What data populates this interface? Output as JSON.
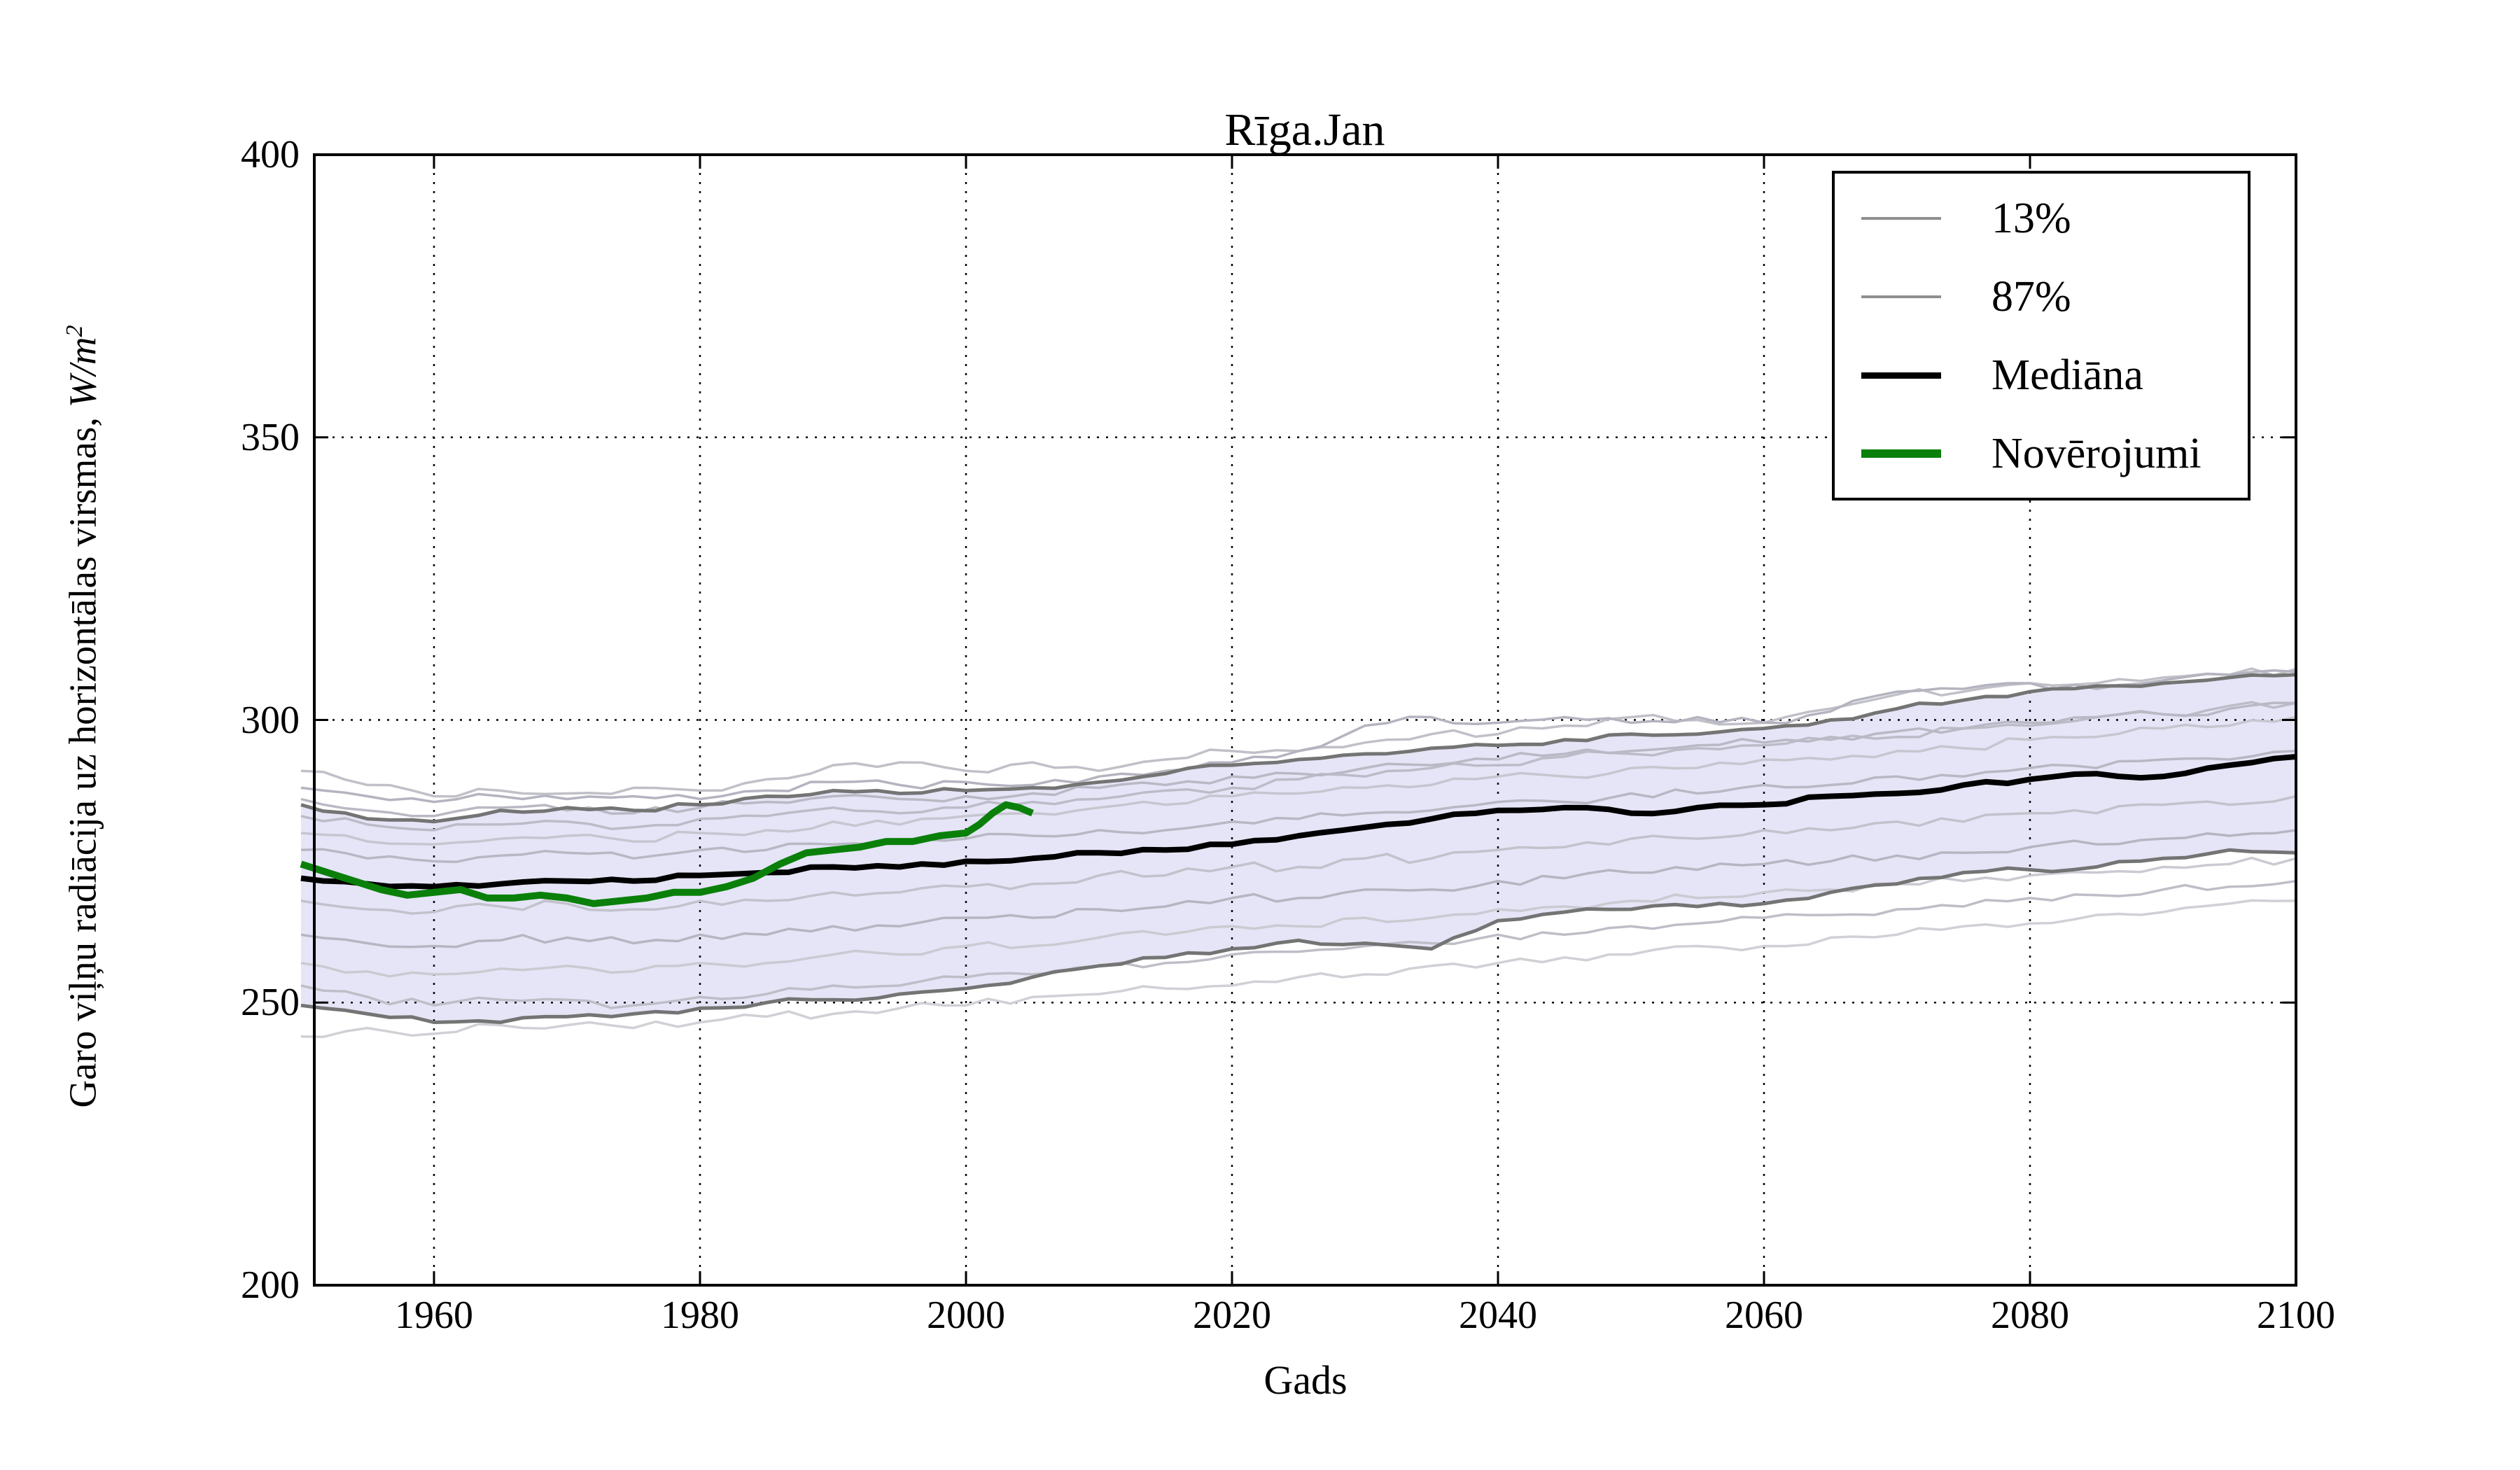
{
  "chart_data": {
    "type": "line",
    "title": "Rīga.Jan",
    "xlabel": "Gads",
    "ylabel": "Garo viļņu radiācija uz horizontālas virsmas, W/m²",
    "ylabel_prefix": "Garo viļņu radiācija uz horizontālas virsmas, ",
    "ylabel_unit_base": "W/m",
    "ylabel_unit_exp": "2",
    "xlim": [
      1951,
      2100
    ],
    "ylim": [
      200,
      400
    ],
    "xticks": [
      1960,
      1980,
      2000,
      2020,
      2040,
      2060,
      2080,
      2100
    ],
    "yticks": [
      200,
      250,
      300,
      350,
      400
    ],
    "grid": true,
    "grid_style": "dotted",
    "background": "#ffffff",
    "band_fill": "#e5e5f7",
    "legend": {
      "position": "upper-right",
      "entries": [
        {
          "label": "13%",
          "color": "#8f8f8f",
          "sample_height": 4
        },
        {
          "label": "87%",
          "color": "#8f8f8f",
          "sample_height": 4
        },
        {
          "label": "Mediāna",
          "color": "#000000",
          "sample_height": 9
        },
        {
          "label": "Novērojumi",
          "color": "#0a800a",
          "sample_height": 12
        }
      ]
    },
    "years": [
      1950,
      1955,
      1960,
      1965,
      1970,
      1975,
      1980,
      1985,
      1990,
      1995,
      2000,
      2005,
      2010,
      2015,
      2020,
      2025,
      2030,
      2035,
      2040,
      2045,
      2050,
      2055,
      2060,
      2065,
      2070,
      2075,
      2080,
      2085,
      2090,
      2095,
      2100
    ],
    "series": [
      {
        "name": "13%",
        "role": "band-lower",
        "color": "#747474",
        "width": 5,
        "values": [
          249.5,
          248,
          246.5,
          246.5,
          247.5,
          248,
          249,
          250,
          250.5,
          251.5,
          252.5,
          254.5,
          256.5,
          258,
          259.5,
          261,
          260.5,
          259.5,
          264.5,
          266,
          266.5,
          267,
          267.5,
          269.5,
          271,
          273,
          273.5,
          274,
          275.5,
          277,
          276.5
        ]
      },
      {
        "name": "87%",
        "role": "band-upper",
        "color": "#747474",
        "width": 5,
        "values": [
          285,
          282.5,
          282,
          284,
          284.5,
          284,
          285,
          286.5,
          287.5,
          287,
          287.5,
          288,
          289,
          290.5,
          292,
          293,
          294,
          295,
          295.5,
          296.5,
          297.5,
          297.5,
          298.5,
          300,
          302,
          303.5,
          305,
          306,
          306.5,
          307.5,
          308
        ]
      },
      {
        "name": "Mediāna",
        "role": "median",
        "color": "#000000",
        "width": 8,
        "values": [
          272,
          271,
          270.5,
          271,
          271.5,
          271.5,
          272.5,
          273,
          274,
          274,
          275,
          275.5,
          276.5,
          277,
          278,
          279.5,
          281,
          282.5,
          284,
          284.5,
          283.5,
          284.5,
          285,
          286.5,
          287,
          288.5,
          289.5,
          290.5,
          290,
          292,
          293.5
        ]
      },
      {
        "name": "Novērojumi",
        "role": "observations",
        "color": "#0a800a",
        "width": 10,
        "x": [
          1950,
          1952,
          1954,
          1956,
          1958,
          1960,
          1962,
          1964,
          1966,
          1968,
          1970,
          1972,
          1974,
          1976,
          1978,
          1980,
          1982,
          1984,
          1986,
          1988,
          1990,
          1992,
          1994,
          1996,
          1998,
          2000,
          2001,
          2002,
          2003,
          2004,
          2005
        ],
        "values": [
          274.5,
          273,
          271.5,
          270,
          269,
          269.5,
          270,
          268.5,
          268.5,
          269,
          268.5,
          267.5,
          268,
          268.5,
          269.5,
          269.5,
          270.5,
          272,
          274.5,
          276.5,
          277,
          277.5,
          278.5,
          278.5,
          279.5,
          280,
          281.5,
          283.5,
          285,
          284.5,
          283.5
        ]
      },
      {
        "name": "ensemble-01",
        "role": "ensemble",
        "color": "#c0c0c8",
        "width": 3.5,
        "values": [
          291,
          288.5,
          286.5,
          287.5,
          287,
          288,
          287.5,
          289.5,
          292,
          292.5,
          291,
          292.5,
          291,
          293,
          294.5,
          294.5,
          296,
          297.5,
          297.5,
          299,
          300.5,
          300,
          299.5,
          302,
          304.5,
          305,
          306.5,
          306.5,
          307.5,
          308,
          309
        ]
      },
      {
        "name": "ensemble-02",
        "role": "ensemble",
        "color": "#b4b4c0",
        "width": 3.5,
        "values": [
          288,
          286.5,
          285.5,
          286.5,
          286,
          286.5,
          286,
          287.5,
          289,
          288.5,
          289,
          288.5,
          290,
          291,
          292.5,
          294.5,
          299,
          300.5,
          299.5,
          300.5,
          299.5,
          300.5,
          299.5,
          301.5,
          305,
          305.5,
          306.5,
          305.5,
          307,
          308,
          308.5
        ]
      },
      {
        "name": "ensemble-03",
        "role": "ensemble",
        "color": "#bcbcc8",
        "width": 3.5,
        "values": [
          283,
          281.5,
          280.5,
          281.5,
          282,
          281,
          282.5,
          283,
          284.5,
          283.5,
          284.5,
          285.5,
          286,
          287.5,
          288,
          289.5,
          290,
          291.5,
          292,
          293.5,
          294,
          295,
          295.5,
          296.5,
          297,
          298.5,
          299,
          300.5,
          301,
          302.5,
          303
        ]
      },
      {
        "name": "ensemble-04",
        "role": "ensemble",
        "color": "#c6c6d0",
        "width": 3.5,
        "values": [
          280,
          278.5,
          278,
          279,
          279.5,
          278.5,
          280,
          280.5,
          282,
          281.5,
          283,
          283.5,
          284.5,
          285,
          286.5,
          287,
          288,
          288.5,
          290,
          290,
          291.5,
          291.5,
          293,
          293,
          294.5,
          295,
          296.5,
          297,
          298.5,
          299,
          300.5
        ]
      },
      {
        "name": "ensemble-05",
        "role": "ensemble",
        "color": "#b8b8c4",
        "width": 3.5,
        "values": [
          277,
          275.5,
          275,
          276,
          276.5,
          275.5,
          277,
          277,
          278,
          278.5,
          279,
          279.5,
          280.5,
          280.5,
          282,
          282.5,
          283.5,
          284,
          285.5,
          285.5,
          287,
          287,
          288.5,
          288.5,
          290,
          290,
          291.5,
          291.5,
          293,
          293,
          294.5
        ]
      },
      {
        "name": "ensemble-06",
        "role": "ensemble",
        "color": "#c2c2cc",
        "width": 3.5,
        "values": [
          268,
          266.5,
          266,
          267,
          267.5,
          266.5,
          268,
          268,
          269.5,
          269.5,
          270.5,
          271,
          272.5,
          272.5,
          274,
          274,
          275.5,
          275.5,
          277,
          277.5,
          279,
          279,
          280.5,
          280.5,
          282,
          282,
          283.5,
          283.5,
          285,
          285,
          286.5
        ]
      },
      {
        "name": "ensemble-07",
        "role": "ensemble",
        "color": "#b6b6c2",
        "width": 3.5,
        "values": [
          262,
          260.5,
          260,
          261,
          261.5,
          260.5,
          262,
          262,
          263.5,
          263.5,
          265,
          265,
          266.5,
          267,
          268.5,
          268.5,
          270,
          270,
          271.5,
          272,
          273,
          273.5,
          274.5,
          275,
          276,
          276.5,
          277.5,
          278,
          279,
          279.5,
          280.5
        ]
      },
      {
        "name": "ensemble-08",
        "role": "ensemble",
        "color": "#cacad2",
        "width": 3.5,
        "values": [
          257,
          255.5,
          255,
          256,
          256.5,
          255.5,
          257,
          257,
          258.5,
          258.5,
          260,
          260,
          261.5,
          262,
          263.5,
          263.5,
          265,
          265,
          266.5,
          267,
          268,
          268.5,
          269.5,
          270,
          271,
          271.5,
          272.5,
          273,
          274,
          274.5,
          275.5
        ]
      },
      {
        "name": "ensemble-09",
        "role": "ensemble",
        "color": "#bebec8",
        "width": 3.5,
        "values": [
          253,
          251,
          249.5,
          250.5,
          250.5,
          249.5,
          251,
          251.5,
          253,
          253,
          254.5,
          255,
          256.5,
          257,
          258.5,
          259,
          260,
          260.5,
          262,
          262,
          263.5,
          264,
          265,
          265.5,
          266.5,
          267,
          268.5,
          269,
          270,
          270.5,
          271.5
        ]
      },
      {
        "name": "ensemble-10",
        "role": "ensemble",
        "color": "#d0d0d6",
        "width": 3.5,
        "values": [
          244,
          245.5,
          244.5,
          246,
          246,
          245.5,
          246.5,
          247.5,
          248,
          249,
          249.5,
          251,
          251.5,
          252.5,
          253,
          254.5,
          255,
          256.5,
          257,
          258,
          258.5,
          260,
          260,
          261.5,
          262,
          263.5,
          264,
          265.5,
          266,
          267.5,
          268
        ]
      },
      {
        "name": "ensemble-11",
        "role": "ensemble",
        "color": "#b9b9c5",
        "width": 3.5,
        "values": [
          286,
          284,
          283,
          284.5,
          284,
          283.5,
          284.5,
          285.5,
          286.5,
          286,
          286.5,
          287,
          288,
          288.5,
          290,
          290.5,
          291.5,
          292,
          293,
          294,
          294.5,
          295.5,
          296,
          297,
          298,
          298.5,
          299.5,
          300.5,
          301,
          302,
          303
        ]
      }
    ]
  }
}
